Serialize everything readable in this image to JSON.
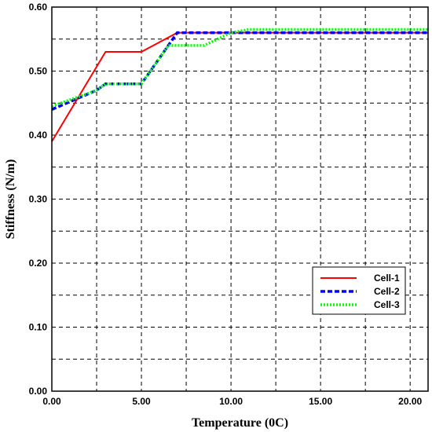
{
  "chart_data": {
    "type": "line",
    "xlabel": "Temperature (0C)",
    "ylabel": "Stiffness (N/m)",
    "xlim": [
      0,
      21
    ],
    "ylim": [
      0,
      0.6
    ],
    "x_ticks": [
      "0.00",
      "5.00",
      "10.00",
      "15.00",
      "20.00"
    ],
    "y_ticks": [
      "0.00",
      "0.10",
      "0.20",
      "0.30",
      "0.40",
      "0.50",
      "0.60"
    ],
    "grid": true,
    "legend_position": "lower-right",
    "series": [
      {
        "name": "Cell-1",
        "color": "#ff0000",
        "style": "solid",
        "points": [
          [
            0,
            0.39
          ],
          [
            3,
            0.53
          ],
          [
            5,
            0.53
          ],
          [
            7,
            0.56
          ],
          [
            21,
            0.56
          ]
        ]
      },
      {
        "name": "Cell-2",
        "color": "#0000ff",
        "style": "dashed",
        "points": [
          [
            0,
            0.44
          ],
          [
            2.5,
            0.47
          ],
          [
            3,
            0.48
          ],
          [
            5,
            0.48
          ],
          [
            7,
            0.56
          ],
          [
            21,
            0.56
          ]
        ]
      },
      {
        "name": "Cell-3",
        "color": "#00ff00",
        "style": "dotted",
        "points": [
          [
            0,
            0.445
          ],
          [
            2.5,
            0.47
          ],
          [
            3,
            0.48
          ],
          [
            5,
            0.48
          ],
          [
            6.5,
            0.54
          ],
          [
            8.5,
            0.54
          ],
          [
            10,
            0.56
          ],
          [
            11,
            0.565
          ],
          [
            21,
            0.565
          ]
        ]
      }
    ]
  }
}
